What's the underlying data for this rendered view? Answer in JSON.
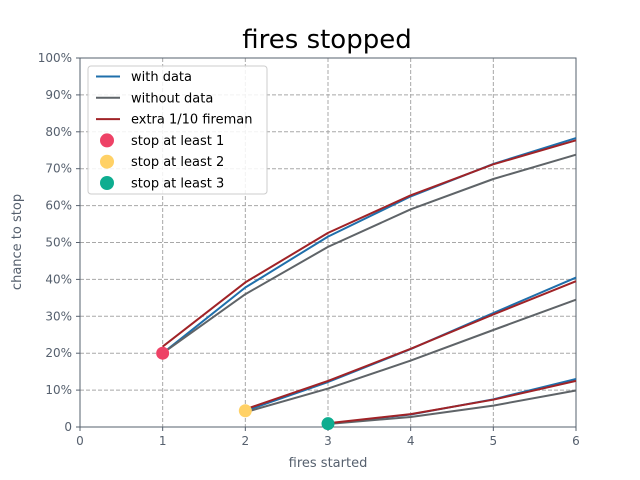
{
  "chart_data": {
    "type": "line",
    "title": "fires stopped",
    "xlabel": "fires started",
    "ylabel": "chance to stop",
    "xlim": [
      0,
      6
    ],
    "ylim": [
      0,
      100
    ],
    "x_ticks": [
      "0",
      "1",
      "2",
      "3",
      "4",
      "5",
      "6"
    ],
    "y_ticks": [
      "0",
      "10%",
      "20%",
      "30%",
      "40%",
      "50%",
      "60%",
      "70%",
      "80%",
      "90%",
      "100%"
    ],
    "grid": true,
    "legend_position": "top-left",
    "legend": [
      {
        "label": "with data",
        "kind": "line",
        "color": "#1f6fab"
      },
      {
        "label": "without data",
        "kind": "line",
        "color": "#5f6468"
      },
      {
        "label": "extra 1/10 fireman",
        "kind": "line",
        "color": "#a02327"
      },
      {
        "label": "stop at least 1",
        "kind": "marker",
        "color": "#ee4266"
      },
      {
        "label": "stop at least 2",
        "kind": "marker",
        "color": "#ffd166"
      },
      {
        "label": "stop at least 3",
        "kind": "marker",
        "color": "#0ead90"
      }
    ],
    "series": [
      {
        "name": "with data",
        "group": "stop at least 1",
        "color": "#1f6fab",
        "x": [
          1,
          2,
          3,
          4,
          5,
          6
        ],
        "values": [
          20,
          37.8,
          51.6,
          62.5,
          71.3,
          78.3
        ]
      },
      {
        "name": "without data",
        "group": "stop at least 1",
        "color": "#5f6468",
        "x": [
          1,
          2,
          3,
          4,
          5,
          6
        ],
        "values": [
          20,
          36,
          48.8,
          59,
          67.2,
          73.8
        ]
      },
      {
        "name": "extra 1/10 fireman",
        "group": "stop at least 1",
        "color": "#a02327",
        "x": [
          1,
          2,
          3,
          4,
          5,
          6
        ],
        "values": [
          21.8,
          39.2,
          52.6,
          62.8,
          71.2,
          77.7
        ]
      },
      {
        "name": "with data",
        "group": "stop at least 2",
        "color": "#1f6fab",
        "x": [
          2,
          3,
          4,
          5,
          6
        ],
        "values": [
          4.4,
          12.2,
          21.1,
          30.9,
          40.5
        ]
      },
      {
        "name": "without data",
        "group": "stop at least 2",
        "color": "#5f6468",
        "x": [
          2,
          3,
          4,
          5,
          6
        ],
        "values": [
          4,
          10.4,
          18,
          26.3,
          34.5
        ]
      },
      {
        "name": "extra 1/10 fireman",
        "group": "stop at least 2",
        "color": "#a02327",
        "x": [
          2,
          3,
          4,
          5,
          6
        ],
        "values": [
          4.8,
          12.5,
          21.2,
          30.5,
          39.5
        ]
      },
      {
        "name": "with data",
        "group": "stop at least 3",
        "color": "#1f6fab",
        "x": [
          3,
          4,
          5,
          6
        ],
        "values": [
          0.9,
          3.4,
          7.5,
          13
        ]
      },
      {
        "name": "without data",
        "group": "stop at least 3",
        "color": "#5f6468",
        "x": [
          3,
          4,
          5,
          6
        ],
        "values": [
          0.8,
          2.7,
          5.8,
          9.9
        ]
      },
      {
        "name": "extra 1/10 fireman",
        "group": "stop at least 3",
        "color": "#a02327",
        "x": [
          3,
          4,
          5,
          6
        ],
        "values": [
          1,
          3.5,
          7.4,
          12.5
        ]
      }
    ],
    "markers": [
      {
        "name": "stop at least 1",
        "x": 1,
        "y": 20,
        "color": "#ee4266"
      },
      {
        "name": "stop at least 2",
        "x": 2,
        "y": 4.4,
        "color": "#ffd166"
      },
      {
        "name": "stop at least 3",
        "x": 3,
        "y": 0.9,
        "color": "#0ead90"
      }
    ],
    "colors": {
      "axis": "#56606e",
      "grid": "#a8a8a8",
      "tick_label": "#56606e",
      "title": "#000000"
    }
  }
}
